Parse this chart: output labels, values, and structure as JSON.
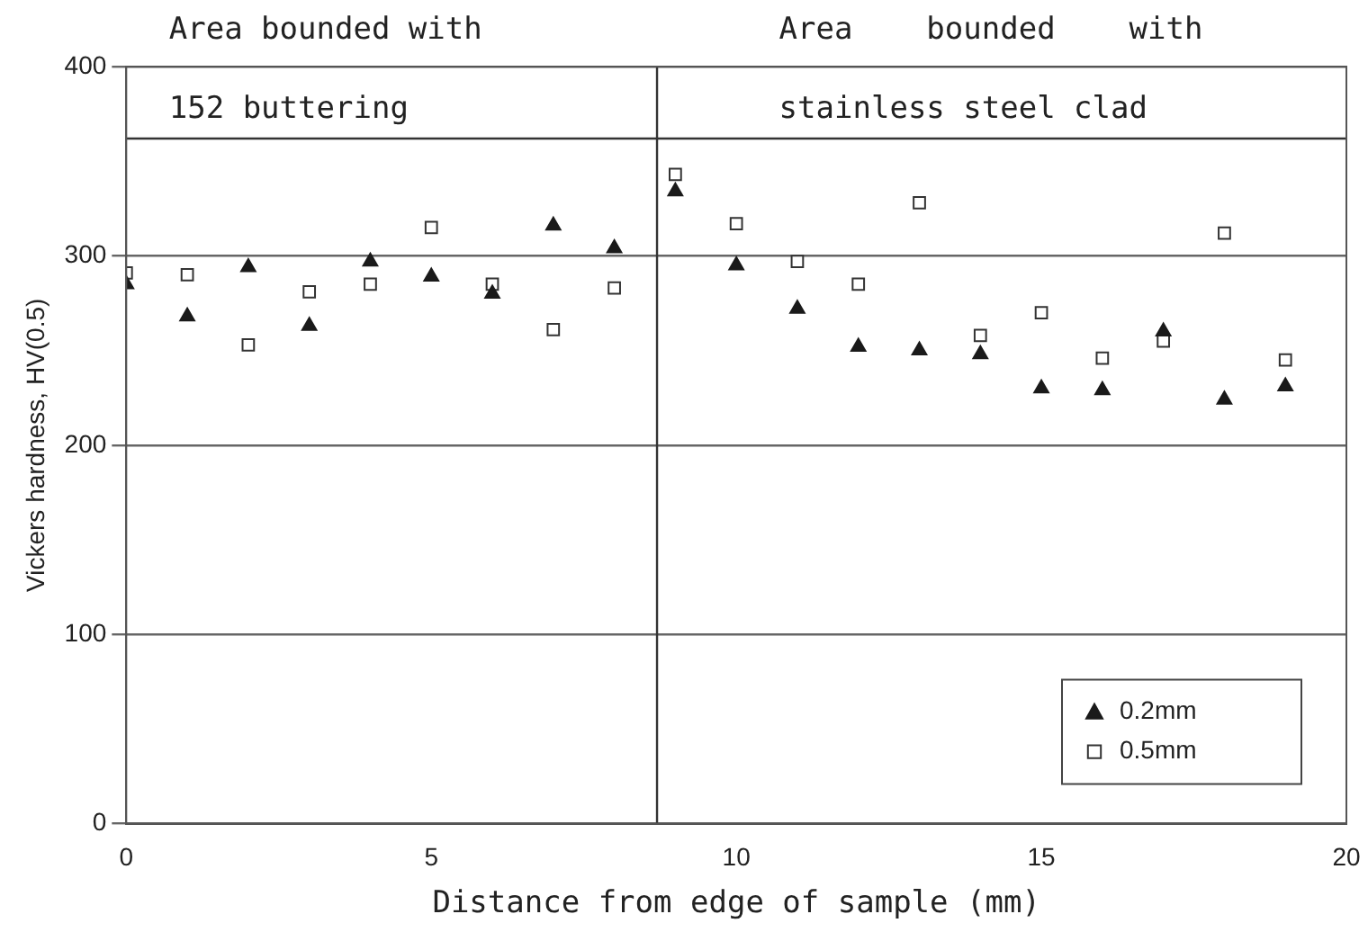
{
  "chart_data": {
    "type": "scatter",
    "xlabel": "Distance from edge of sample (mm)",
    "ylabel": "Vickers hardness, HV(0.5)",
    "annotations": [
      "Area bounded with",
      "152 buttering",
      "Area    bounded    with",
      "stainless steel clad"
    ],
    "xlim": [
      0,
      20
    ],
    "xticks": [
      0,
      5,
      10,
      15,
      20
    ],
    "ylim": [
      0,
      400
    ],
    "yticks": [
      0,
      100,
      200,
      300,
      400
    ],
    "grid": "y",
    "legend": "bottom right",
    "x": [
      0,
      1,
      2,
      3,
      4,
      5,
      6,
      7,
      8,
      9,
      10,
      11,
      12,
      13,
      14,
      15,
      16,
      17,
      18,
      19
    ],
    "series": [
      {
        "name": "0.2mm",
        "color": "#1a1a1a",
        "marker": "triangle",
        "values": [
          285,
          268,
          294,
          263,
          297,
          289,
          280,
          316,
          304,
          334,
          295,
          272,
          252,
          250,
          248,
          230,
          229,
          260,
          224,
          231
        ]
      },
      {
        "name": "0.5mm",
        "color": "#333333",
        "marker": "square",
        "values": [
          291,
          290,
          253,
          281,
          285,
          315,
          285,
          261,
          283,
          343,
          317,
          297,
          285,
          328,
          258,
          270,
          246,
          255,
          312,
          245
        ]
      }
    ],
    "ref_lines": [
      {
        "axis": "y",
        "value": 362,
        "color": "#333333"
      },
      {
        "axis": "x",
        "value": 8.7,
        "color": "#333333"
      }
    ]
  }
}
